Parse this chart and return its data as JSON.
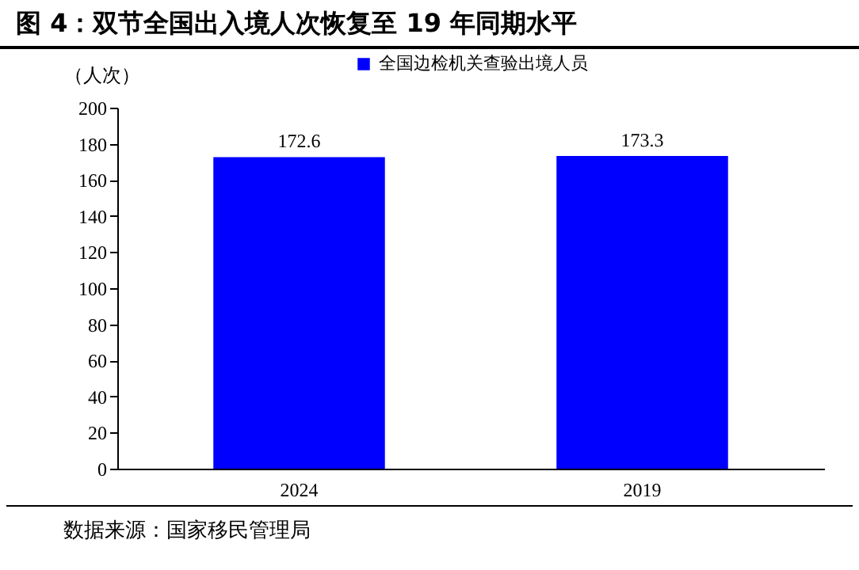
{
  "chart_data": {
    "type": "bar",
    "title": "图 4：双节全国出入境人次恢复至 19 年同期水平",
    "ylabel": "（人次）",
    "categories": [
      "2024",
      "2019"
    ],
    "series": [
      {
        "name": "全国边检机关查验出境人员",
        "color": "#0000ff",
        "values": [
          172.6,
          173.3
        ]
      }
    ],
    "ylim": [
      0,
      200
    ],
    "yticks": [
      0,
      20,
      40,
      60,
      80,
      100,
      120,
      140,
      160,
      180,
      200
    ],
    "grid": false,
    "legend": "top",
    "data_labels": true,
    "annotations": [
      "数据来源：国家移民管理局"
    ]
  }
}
